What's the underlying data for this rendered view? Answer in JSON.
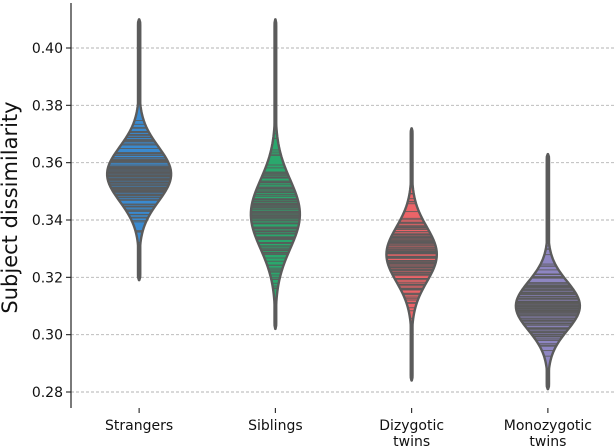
{
  "chart_data": {
    "type": "violin",
    "ylabel": "Subject dissimilarity",
    "xlabel": "",
    "ylim": [
      0.277,
      0.418
    ],
    "yticks": [
      "0.28",
      "0.30",
      "0.32",
      "0.34",
      "0.36",
      "0.38",
      "0.40"
    ],
    "grid": "horizontal-dashed",
    "categories": [
      {
        "label_lines": [
          "Strangers"
        ],
        "color": "#3a8ad0",
        "ymin": 0.319,
        "ymax": 0.41,
        "peak": 0.356,
        "spread": 0.0095,
        "max_width": 0.47
      },
      {
        "label_lines": [
          "Siblings"
        ],
        "color": "#2aa86d",
        "ymin": 0.302,
        "ymax": 0.41,
        "peak": 0.342,
        "spread": 0.012,
        "max_width": 0.36
      },
      {
        "label_lines": [
          "Dizygotic",
          "twins"
        ],
        "color": "#ec6468",
        "ymin": 0.284,
        "ymax": 0.372,
        "peak": 0.328,
        "spread": 0.0095,
        "max_width": 0.37
      },
      {
        "label_lines": [
          "Monozygotic",
          "twins"
        ],
        "color": "#8e86c2",
        "ymin": 0.281,
        "ymax": 0.363,
        "peak": 0.31,
        "spread": 0.0085,
        "max_width": 0.47
      }
    ]
  }
}
